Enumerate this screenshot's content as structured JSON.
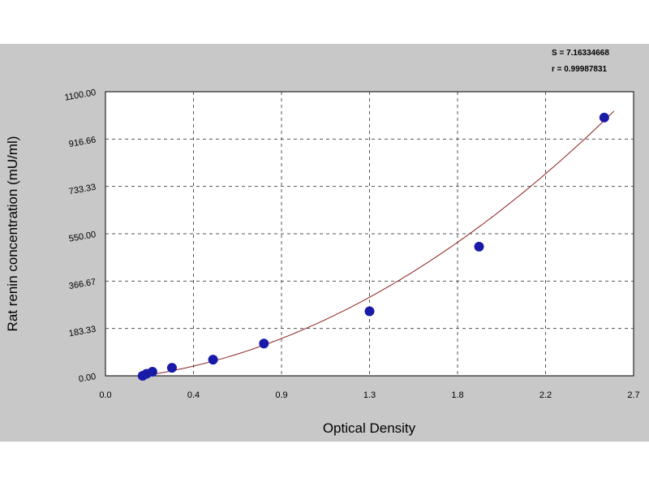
{
  "chart_data": {
    "type": "scatter",
    "title": "",
    "xlabel": "Optical Density",
    "ylabel": "Rat renin concentration (mU/ml)",
    "xlim": [
      0.0,
      2.7
    ],
    "ylim": [
      0.0,
      1100.0
    ],
    "x_tick_labels": [
      "0.0",
      "0.4",
      "0.9",
      "1.3",
      "1.8",
      "2.2",
      "2.7"
    ],
    "y_tick_labels": [
      "0.00",
      "183.33",
      "366.67",
      "550.00",
      "733.33",
      "916.66",
      "1100.00"
    ],
    "grid": true,
    "stats": [
      "S = 7.16334668",
      "r = 0.99987831"
    ],
    "series": [
      {
        "points": [
          {
            "x": 0.19,
            "y": 0.0
          },
          {
            "x": 0.21,
            "y": 7.8
          },
          {
            "x": 0.24,
            "y": 15.6
          },
          {
            "x": 0.34,
            "y": 31.2
          },
          {
            "x": 0.55,
            "y": 62.5
          },
          {
            "x": 0.81,
            "y": 125.0
          },
          {
            "x": 1.35,
            "y": 250.0
          },
          {
            "x": 1.91,
            "y": 500.0
          },
          {
            "x": 2.55,
            "y": 1000.0
          }
        ],
        "fit_curve": {
          "model": "quadratic",
          "a": 130.4,
          "b": 61.7,
          "c": -16.7,
          "x_range": [
            0.19,
            2.6
          ]
        }
      }
    ],
    "colors": {
      "points": "#1a1aa8",
      "curve": "#8b2020",
      "grid": "#555555",
      "panel": "#c8c8c8"
    }
  }
}
